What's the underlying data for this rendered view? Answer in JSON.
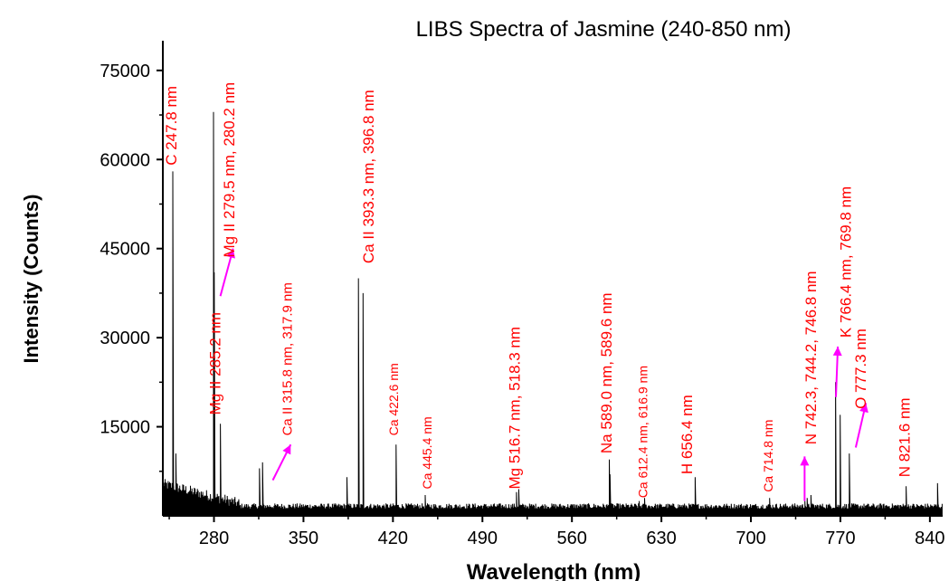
{
  "chart_data": {
    "type": "line",
    "title": "LIBS Spectra of Jasmine (240-850 nm)",
    "xlabel": "Wavelength (nm)",
    "ylabel": "Intensity (Counts)",
    "xlim": [
      240,
      850
    ],
    "ylim": [
      0,
      80000
    ],
    "xticks": [
      280,
      350,
      420,
      490,
      560,
      630,
      700,
      770,
      840
    ],
    "xtick_labels": [
      "280",
      "350",
      "420",
      "490",
      "560",
      "630",
      "700",
      "770",
      "840"
    ],
    "yticks": [
      15000,
      30000,
      45000,
      60000,
      75000
    ],
    "ytick_labels": [
      "15000",
      "30000",
      "45000",
      "60000",
      "75000"
    ],
    "grid": false,
    "colors": {
      "line": "#000000",
      "annotation": "#ff0000",
      "arrow": "#ff00ff"
    },
    "peaks": [
      {
        "x": 247.8,
        "y": 58000
      },
      {
        "x": 250.0,
        "y": 10500
      },
      {
        "x": 279.5,
        "y": 68000
      },
      {
        "x": 280.2,
        "y": 41000
      },
      {
        "x": 285.2,
        "y": 15500
      },
      {
        "x": 315.8,
        "y": 8000
      },
      {
        "x": 317.9,
        "y": 9000
      },
      {
        "x": 384.0,
        "y": 6500
      },
      {
        "x": 393.3,
        "y": 40000
      },
      {
        "x": 396.8,
        "y": 37500
      },
      {
        "x": 422.6,
        "y": 12000
      },
      {
        "x": 445.4,
        "y": 3500
      },
      {
        "x": 516.7,
        "y": 4000
      },
      {
        "x": 518.3,
        "y": 4500
      },
      {
        "x": 589.0,
        "y": 9500
      },
      {
        "x": 589.6,
        "y": 7000
      },
      {
        "x": 612.4,
        "y": 2500
      },
      {
        "x": 616.9,
        "y": 3000
      },
      {
        "x": 656.4,
        "y": 6500
      },
      {
        "x": 714.8,
        "y": 3000
      },
      {
        "x": 742.3,
        "y": 2500
      },
      {
        "x": 744.2,
        "y": 3000
      },
      {
        "x": 746.8,
        "y": 3500
      },
      {
        "x": 766.4,
        "y": 22500
      },
      {
        "x": 769.8,
        "y": 17000
      },
      {
        "x": 777.3,
        "y": 10500
      },
      {
        "x": 821.6,
        "y": 5000
      },
      {
        "x": 846.0,
        "y": 5500
      }
    ],
    "annotations": [
      {
        "text": "C 247.8 nm",
        "x": 250.5,
        "y": 59000,
        "size": 17
      },
      {
        "text": "Mg II 279.5 nm, 280.2 nm",
        "x": 296,
        "y": 43500,
        "size": 17
      },
      {
        "text": "Mg II 285.2 nm",
        "x": 285,
        "y": 17000,
        "size": 17
      },
      {
        "text": "Ca II 315.8 nm, 317.9 nm",
        "x": 341,
        "y": 13500,
        "size": 15
      },
      {
        "text": "Ca II 393.3 nm, 396.8 nm",
        "x": 405,
        "y": 42500,
        "size": 17
      },
      {
        "text": "Ca 422.6 nm",
        "x": 424,
        "y": 13500,
        "size": 14
      },
      {
        "text": "Ca  445.4 nm",
        "x": 450,
        "y": 4500,
        "size": 14
      },
      {
        "text": "Mg 516.7 nm, 518.3 nm",
        "x": 519,
        "y": 4500,
        "size": 17
      },
      {
        "text": "Na 589.0 nm, 589.6 nm",
        "x": 591,
        "y": 10500,
        "size": 17
      },
      {
        "text": "Ca  612.4 nm, 616.9 nm",
        "x": 619,
        "y": 3000,
        "size": 14
      },
      {
        "text": "H 656.4 nm",
        "x": 654,
        "y": 7000,
        "size": 17
      },
      {
        "text": "Ca  714.8 nm",
        "x": 717,
        "y": 4000,
        "size": 14
      },
      {
        "text": "N 742.3, 744.2, 746.8 nm",
        "x": 751,
        "y": 12000,
        "size": 17
      },
      {
        "text": "K 766.4 nm, 769.8 nm",
        "x": 778,
        "y": 30000,
        "size": 17
      },
      {
        "text": "O 777.3 nm",
        "x": 790,
        "y": 18000,
        "size": 17
      },
      {
        "text": "N 821.6 nm",
        "x": 824,
        "y": 6500,
        "size": 17
      }
    ]
  }
}
